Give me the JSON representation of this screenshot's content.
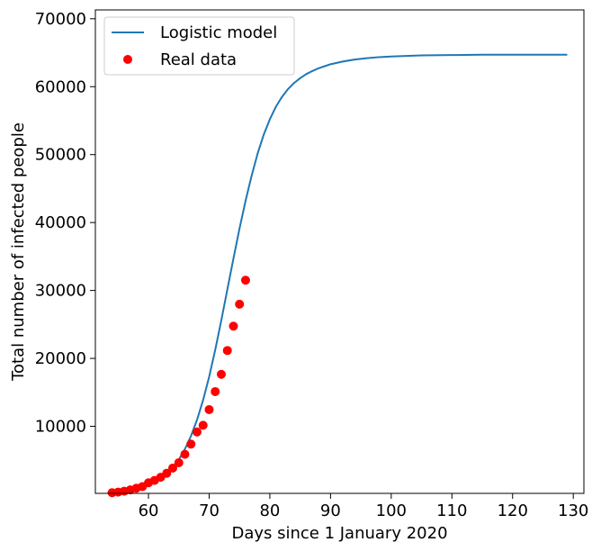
{
  "chart_data": {
    "type": "line",
    "xlabel": "Days since 1 January 2020",
    "ylabel": "Total number of infected people",
    "xlim": [
      51.25,
      131.75
    ],
    "ylim": [
      130,
      71300
    ],
    "xticks": [
      60,
      70,
      80,
      90,
      100,
      110,
      120,
      130
    ],
    "yticks": [
      10000,
      20000,
      30000,
      40000,
      50000,
      60000,
      70000
    ],
    "legend_position": "top-left",
    "grid": false,
    "series": [
      {
        "name": "Logistic model",
        "type": "line",
        "color": "#1f77b4",
        "x": [
          54,
          55,
          56,
          57,
          58,
          59,
          60,
          61,
          62,
          63,
          64,
          65,
          66,
          67,
          68,
          69,
          70,
          71,
          72,
          73,
          74,
          75,
          76,
          77,
          78,
          79,
          80,
          81,
          82,
          83,
          84,
          85,
          86,
          87,
          88,
          89,
          90,
          92,
          94,
          96,
          98,
          100,
          105,
          110,
          115,
          120,
          125,
          129
        ],
        "y": [
          200,
          280,
          380,
          520,
          700,
          950,
          1270,
          1690,
          2240,
          2960,
          3900,
          5100,
          6640,
          8560,
          10950,
          13850,
          17300,
          21250,
          25600,
          30150,
          34700,
          39100,
          43200,
          46900,
          50200,
          52950,
          55200,
          57050,
          58500,
          59650,
          60550,
          61250,
          61850,
          62300,
          62700,
          63000,
          63300,
          63700,
          64000,
          64200,
          64350,
          64450,
          64600,
          64650,
          64700,
          64700,
          64700,
          64700
        ]
      },
      {
        "name": "Real data",
        "type": "scatter",
        "color": "#ff0000",
        "x": [
          54,
          55,
          56,
          57,
          58,
          59,
          60,
          61,
          62,
          63,
          64,
          65,
          66,
          67,
          68,
          69,
          70,
          71,
          72,
          73,
          74,
          75,
          76
        ],
        "y": [
          230,
          320,
          450,
          650,
          890,
          1130,
          1690,
          2040,
          2500,
          3090,
          3860,
          4640,
          5880,
          7380,
          9170,
          10150,
          12460,
          15110,
          17660,
          21160,
          24750,
          27980,
          31510
        ]
      }
    ]
  }
}
